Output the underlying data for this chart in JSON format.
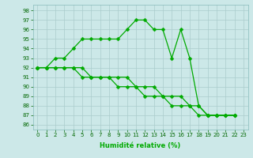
{
  "xlabel": "Humidité relative (%)",
  "xlim": [
    -0.5,
    23.5
  ],
  "ylim": [
    85.5,
    98.6
  ],
  "yticks": [
    86,
    87,
    88,
    89,
    90,
    91,
    92,
    93,
    94,
    95,
    96,
    97,
    98
  ],
  "xticks": [
    0,
    1,
    2,
    3,
    4,
    5,
    6,
    7,
    8,
    9,
    10,
    11,
    12,
    13,
    14,
    15,
    16,
    17,
    18,
    19,
    20,
    21,
    22,
    23
  ],
  "bg_color": "#cce8e8",
  "grid_color": "#aacccc",
  "line_color": "#00aa00",
  "line1_x": [
    0,
    1,
    2,
    3,
    4,
    5,
    6,
    7,
    8,
    9,
    10,
    11,
    12,
    13,
    14,
    15,
    16,
    17,
    18,
    19,
    20,
    21,
    22
  ],
  "line1_y": [
    92,
    92,
    93,
    93,
    94,
    95,
    95,
    95,
    95,
    95,
    96,
    97,
    97,
    96,
    96,
    93,
    96,
    93,
    88,
    87,
    87,
    87,
    87
  ],
  "line2_x": [
    0,
    1,
    2,
    3,
    4,
    5,
    6,
    7,
    8,
    9,
    10,
    11,
    12,
    13,
    14,
    15,
    16,
    17,
    18,
    19,
    20,
    21,
    22
  ],
  "line2_y": [
    92,
    92,
    92,
    92,
    92,
    92,
    91,
    91,
    91,
    91,
    91,
    90,
    90,
    90,
    89,
    89,
    89,
    88,
    88,
    87,
    87,
    87,
    87
  ],
  "line3_x": [
    0,
    1,
    2,
    3,
    4,
    5,
    6,
    7,
    8,
    9,
    10,
    11,
    12,
    13,
    14,
    15,
    16,
    17,
    18,
    19,
    20,
    21,
    22
  ],
  "line3_y": [
    92,
    92,
    92,
    92,
    92,
    91,
    91,
    91,
    91,
    90,
    90,
    90,
    89,
    89,
    89,
    88,
    88,
    88,
    87,
    87,
    87,
    87,
    87
  ],
  "marker_size": 2.5,
  "line_width": 0.9,
  "tick_fontsize": 5.0,
  "xlabel_fontsize": 6.0
}
